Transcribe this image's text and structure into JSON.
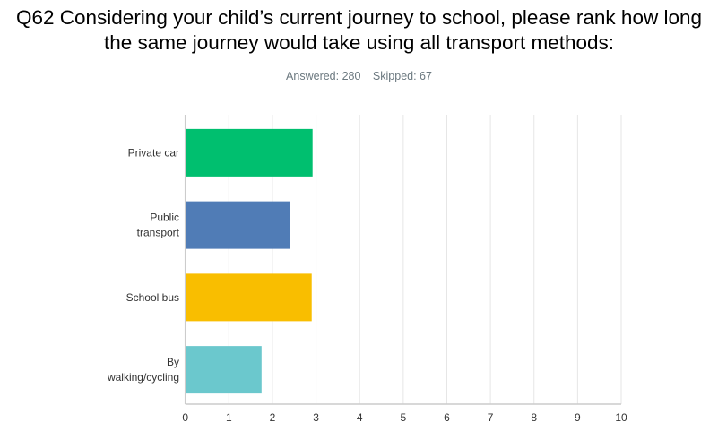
{
  "title": "Q62 Considering your child’s current journey to school, please rank how long the same journey would take using all transport methods:",
  "stats": {
    "answered": "Answered: 280",
    "skipped": "Skipped: 67"
  },
  "chart_data": {
    "type": "bar",
    "orientation": "horizontal",
    "categories": [
      [
        "Private car"
      ],
      [
        "Public",
        "transport"
      ],
      [
        "School bus"
      ],
      [
        "By",
        "walking/cycling"
      ]
    ],
    "values": [
      2.92,
      2.41,
      2.9,
      1.75
    ],
    "colors": [
      "#00bf6f",
      "#507cb6",
      "#f9be00",
      "#6bc8cd"
    ],
    "xlim": [
      0,
      10
    ],
    "xticks": [
      "0",
      "1",
      "2",
      "3",
      "4",
      "5",
      "6",
      "7",
      "8",
      "9",
      "10"
    ],
    "grid": true
  }
}
